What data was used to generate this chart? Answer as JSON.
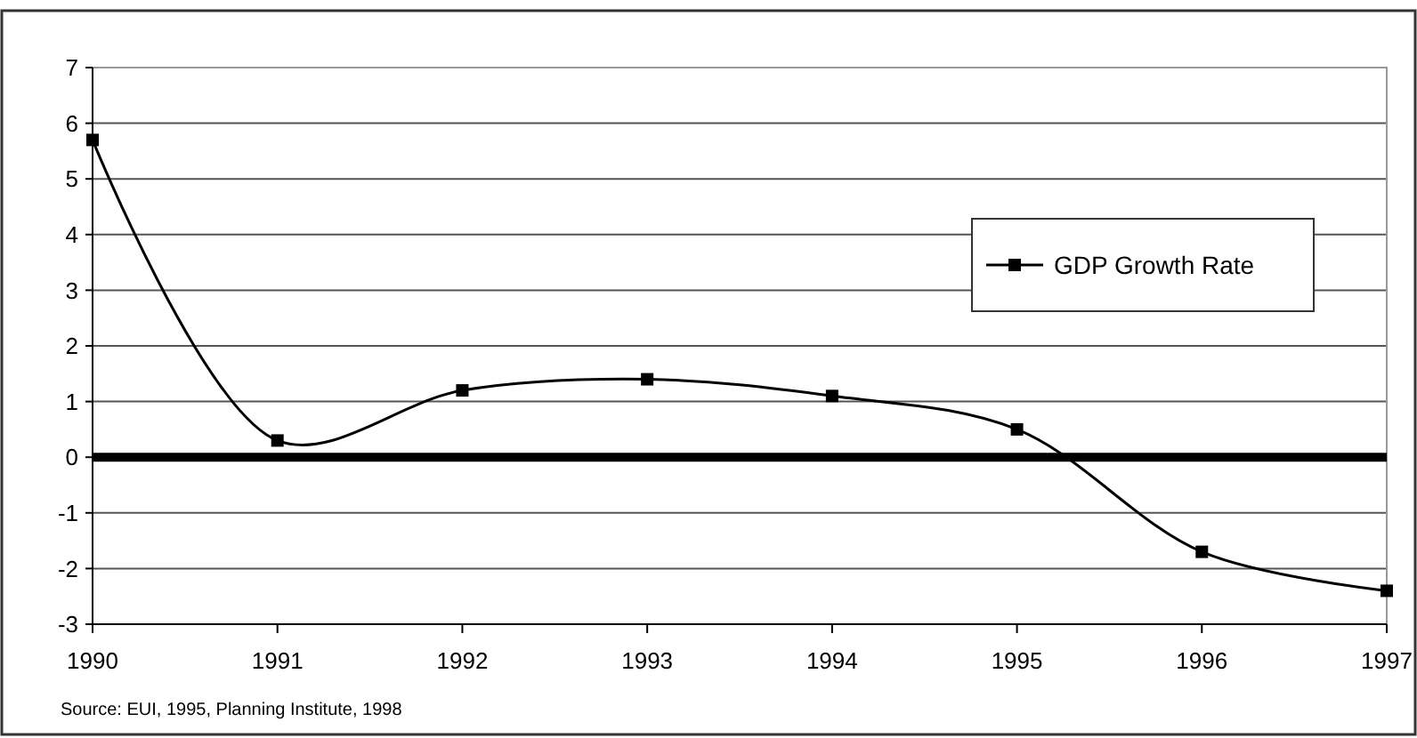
{
  "chart_data": {
    "type": "line",
    "x": [
      1990,
      1991,
      1992,
      1993,
      1994,
      1995,
      1996,
      1997
    ],
    "series": [
      {
        "name": "GDP Growth Rate",
        "color": "#000000",
        "values": [
          5.7,
          0.3,
          1.2,
          1.4,
          1.1,
          0.5,
          -1.7,
          -2.4
        ]
      }
    ],
    "xlim": [
      1990,
      1997
    ],
    "xticks": [
      1990,
      1991,
      1992,
      1993,
      1994,
      1995,
      1996,
      1997
    ],
    "ylim": [
      -3,
      7
    ],
    "yticks": [
      -3,
      -2,
      -1,
      0,
      1,
      2,
      3,
      4,
      5,
      6,
      7
    ],
    "grid": "y",
    "legend": "right",
    "marker": "square",
    "line_style": "solid",
    "ref_lines": [
      {
        "axis": "y",
        "value": 0,
        "color": "#000000"
      }
    ],
    "annotations": [
      "Source:  EUI, 1995, Planning Institute, 1998"
    ]
  }
}
